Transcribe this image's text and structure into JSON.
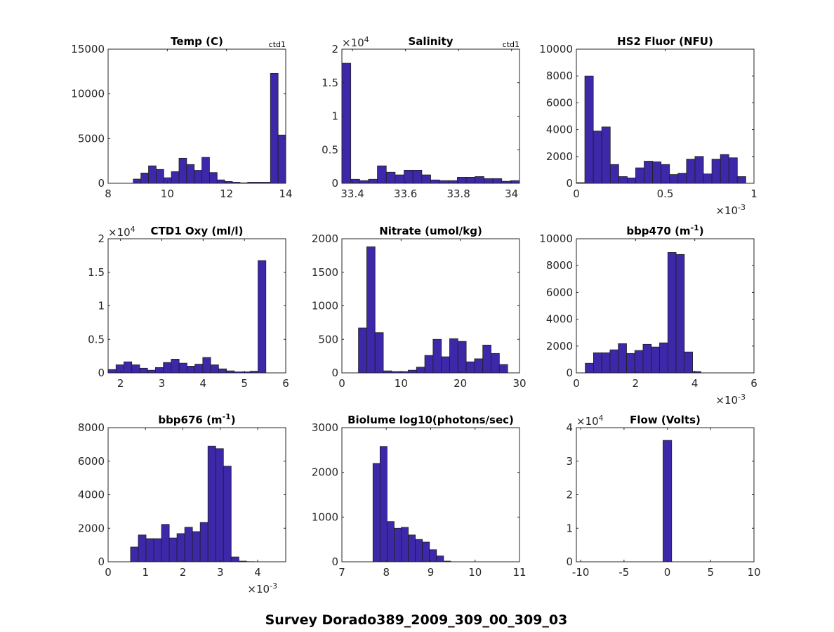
{
  "figure": {
    "suptitle": "Survey Dorado389_2009_309_00_309_03",
    "bar_color": "#3c28a8",
    "edge_color": "#1f1f1f"
  },
  "chart_data": [
    {
      "type": "bar",
      "title": "Temp (C)",
      "corner_label": "ctd1",
      "xlim": [
        8,
        14
      ],
      "ylim": [
        0,
        15000
      ],
      "xticks": [
        8,
        10,
        12,
        14
      ],
      "xtick_labels": [
        "8",
        "10",
        "12",
        "14"
      ],
      "yticks": [
        0,
        5000,
        10000,
        15000
      ],
      "ytick_labels": [
        "0",
        "5000",
        "10000",
        "15000"
      ],
      "y_exponent": "",
      "x_exponent": "",
      "bin_start": 8.85,
      "bin_width": 0.2575,
      "values": [
        470,
        1150,
        1950,
        1550,
        620,
        1300,
        2800,
        2100,
        1450,
        2900,
        1200,
        380,
        200,
        120,
        50,
        120,
        120,
        120,
        12300,
        5400
      ]
    },
    {
      "type": "bar",
      "title": "Salinity",
      "corner_label": "ctd1",
      "xlim": [
        33.36,
        34.03
      ],
      "ylim": [
        0,
        2
      ],
      "xticks": [
        33.4,
        33.6,
        33.8,
        34
      ],
      "xtick_labels": [
        "33.4",
        "33.6",
        "33.8",
        "34"
      ],
      "yticks": [
        0,
        0.5,
        1,
        1.5,
        2
      ],
      "ytick_labels": [
        "0",
        "0.5",
        "1",
        "1.5",
        "2"
      ],
      "y_exponent": "4",
      "x_exponent": "",
      "bin_start": 33.36,
      "bin_width": 0.0335,
      "values": [
        1.79,
        0.06,
        0.04,
        0.06,
        0.26,
        0.165,
        0.125,
        0.195,
        0.195,
        0.125,
        0.05,
        0.04,
        0.04,
        0.09,
        0.09,
        0.1,
        0.07,
        0.07,
        0.03,
        0.04
      ]
    },
    {
      "type": "bar",
      "title": "HS2 Fluor (NFU)",
      "corner_label": "",
      "xlim": [
        0,
        1
      ],
      "ylim": [
        0,
        10000
      ],
      "xticks": [
        0,
        0.5,
        1
      ],
      "xtick_labels": [
        "0",
        "0.5",
        "1"
      ],
      "yticks": [
        0,
        2000,
        4000,
        6000,
        8000,
        10000
      ],
      "ytick_labels": [
        "0",
        "2000",
        "4000",
        "6000",
        "8000",
        "10000"
      ],
      "y_exponent": "",
      "x_exponent": "-3",
      "bin_start": 0.0,
      "bin_width": 0.0477,
      "values": [
        50,
        8000,
        3900,
        4200,
        1400,
        500,
        400,
        1150,
        1650,
        1600,
        1400,
        650,
        750,
        1800,
        2000,
        700,
        1800,
        2150,
        1900,
        500
      ]
    },
    {
      "type": "bar",
      "title": "CTD1 Oxy (ml/l)",
      "corner_label": "",
      "xlim": [
        1.7,
        6
      ],
      "ylim": [
        0,
        2
      ],
      "xticks": [
        2,
        3,
        4,
        5,
        6
      ],
      "xtick_labels": [
        "2",
        "3",
        "4",
        "5",
        "6"
      ],
      "yticks": [
        0,
        0.5,
        1,
        1.5,
        2
      ],
      "ytick_labels": [
        "0",
        "0.5",
        "1",
        "1.5",
        "2"
      ],
      "y_exponent": "4",
      "x_exponent": "",
      "bin_start": 1.7,
      "bin_width": 0.191,
      "values": [
        0.05,
        0.12,
        0.165,
        0.12,
        0.07,
        0.04,
        0.08,
        0.155,
        0.205,
        0.145,
        0.1,
        0.13,
        0.23,
        0.12,
        0.06,
        0.03,
        0.015,
        0.015,
        0.025,
        1.675
      ]
    },
    {
      "type": "bar",
      "title": "Nitrate (umol/kg)",
      "corner_label": "",
      "xlim": [
        0,
        30
      ],
      "ylim": [
        0,
        2000
      ],
      "xticks": [
        0,
        10,
        20,
        30
      ],
      "xtick_labels": [
        "0",
        "10",
        "20",
        "30"
      ],
      "yticks": [
        0,
        500,
        1000,
        1500,
        2000
      ],
      "ytick_labels": [
        "0",
        "500",
        "1000",
        "1500",
        "2000"
      ],
      "y_exponent": "",
      "x_exponent": "",
      "bin_start": 2.8,
      "bin_width": 1.4,
      "values": [
        670,
        1880,
        600,
        30,
        20,
        20,
        40,
        85,
        260,
        500,
        240,
        510,
        470,
        165,
        210,
        415,
        290,
        125
      ]
    },
    {
      "type": "bar",
      "title": "bbp470 (m",
      "title_sup": "-1",
      "title_tail": ")",
      "corner_label": "",
      "xlim": [
        0,
        6
      ],
      "ylim": [
        0,
        10000
      ],
      "xticks": [
        0,
        2,
        4,
        6
      ],
      "xtick_labels": [
        "0",
        "2",
        "4",
        "6"
      ],
      "yticks": [
        0,
        2000,
        4000,
        6000,
        8000,
        10000
      ],
      "ytick_labels": [
        "0",
        "2000",
        "4000",
        "6000",
        "8000",
        "10000"
      ],
      "y_exponent": "",
      "x_exponent": "-3",
      "bin_start": 0.3,
      "bin_width": 0.279,
      "values": [
        720,
        1500,
        1500,
        1720,
        2180,
        1450,
        1670,
        2130,
        1930,
        2240,
        8980,
        8830,
        1560,
        100
      ]
    },
    {
      "type": "bar",
      "title": "bbp676 (m",
      "title_sup": "-1",
      "title_tail": ")",
      "corner_label": "",
      "xlim": [
        0,
        4.75
      ],
      "ylim": [
        0,
        8000
      ],
      "xticks": [
        0,
        1,
        2,
        3,
        4
      ],
      "xtick_labels": [
        "0",
        "1",
        "2",
        "3",
        "4"
      ],
      "yticks": [
        0,
        2000,
        4000,
        6000,
        8000
      ],
      "ytick_labels": [
        "0",
        "2000",
        "4000",
        "6000",
        "8000"
      ],
      "y_exponent": "",
      "x_exponent": "-3",
      "bin_start": 0.6,
      "bin_width": 0.207,
      "values": [
        880,
        1600,
        1380,
        1380,
        2230,
        1420,
        1680,
        2060,
        1800,
        2350,
        6900,
        6750,
        5700,
        290,
        40,
        10
      ]
    },
    {
      "type": "bar",
      "title": "Biolume log10(photons/sec)",
      "corner_label": "",
      "xlim": [
        7,
        11
      ],
      "ylim": [
        0,
        3000
      ],
      "xticks": [
        7,
        8,
        9,
        10,
        11
      ],
      "xtick_labels": [
        "7",
        "8",
        "9",
        "10",
        "11"
      ],
      "yticks": [
        0,
        1000,
        2000,
        3000
      ],
      "ytick_labels": [
        "0",
        "1000",
        "2000",
        "3000"
      ],
      "y_exponent": "",
      "x_exponent": "",
      "bin_start": 7.7,
      "bin_width": 0.159,
      "values": [
        2200,
        2580,
        900,
        750,
        770,
        600,
        500,
        440,
        270,
        130,
        15
      ]
    },
    {
      "type": "bar",
      "title": "Flow (Volts)",
      "corner_label": "",
      "xlim": [
        -10.5,
        10
      ],
      "ylim": [
        0,
        4
      ],
      "xticks": [
        -10,
        -5,
        0,
        5,
        10
      ],
      "xtick_labels": [
        "-10",
        "-5",
        "0",
        "5",
        "10"
      ],
      "yticks": [
        0,
        1,
        2,
        3,
        4
      ],
      "ytick_labels": [
        "0",
        "1",
        "2",
        "3",
        "4"
      ],
      "y_exponent": "4",
      "x_exponent": "",
      "bin_start": -0.5,
      "bin_width": 1.0,
      "values": [
        3.62
      ]
    }
  ]
}
